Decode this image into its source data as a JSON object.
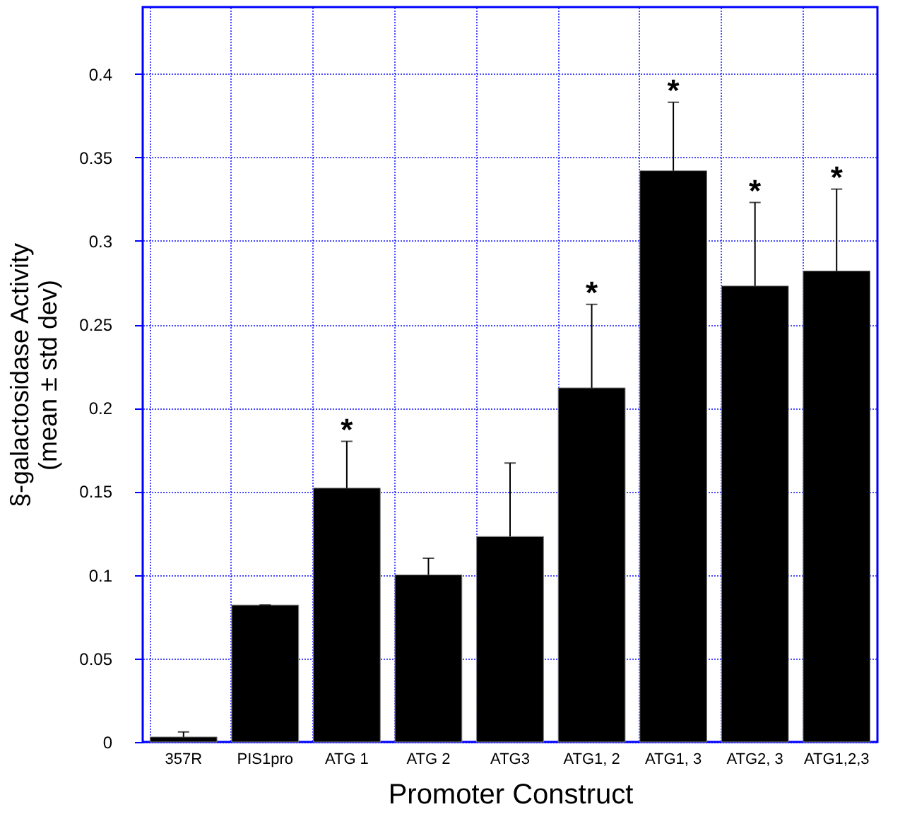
{
  "chart_data": {
    "type": "bar",
    "xlabel": "Promoter Construct",
    "ylabel": "§-galactosidase Activity\n(mean ± std dev)",
    "categories": [
      "357R",
      "PIS1pro",
      "ATG 1",
      "ATG 2",
      "ATG3",
      "ATG1, 2",
      "ATG1, 3",
      "ATG2, 3",
      "ATG1,2,3"
    ],
    "values": [
      0.003,
      0.082,
      0.152,
      0.1,
      0.123,
      0.212,
      0.342,
      0.273,
      0.282
    ],
    "color": "#000000",
    "value_labels": [
      null,
      null,
      "*",
      null,
      null,
      "*",
      "*",
      "*",
      "*"
    ],
    "errors": [
      [
        0.003,
        0.006
      ],
      [
        0.082,
        0.082
      ],
      [
        0.152,
        0.18
      ],
      [
        0.1,
        0.11
      ],
      [
        0.123,
        0.167
      ],
      [
        0.212,
        0.262
      ],
      [
        0.342,
        0.383
      ],
      [
        0.273,
        0.323
      ],
      [
        0.282,
        0.331
      ]
    ],
    "ylim": [
      0,
      0.44
    ],
    "yticks": [
      0,
      0.05,
      0.1,
      0.15,
      0.2,
      0.25,
      0.3,
      0.35,
      0.4
    ],
    "grid": true
  }
}
